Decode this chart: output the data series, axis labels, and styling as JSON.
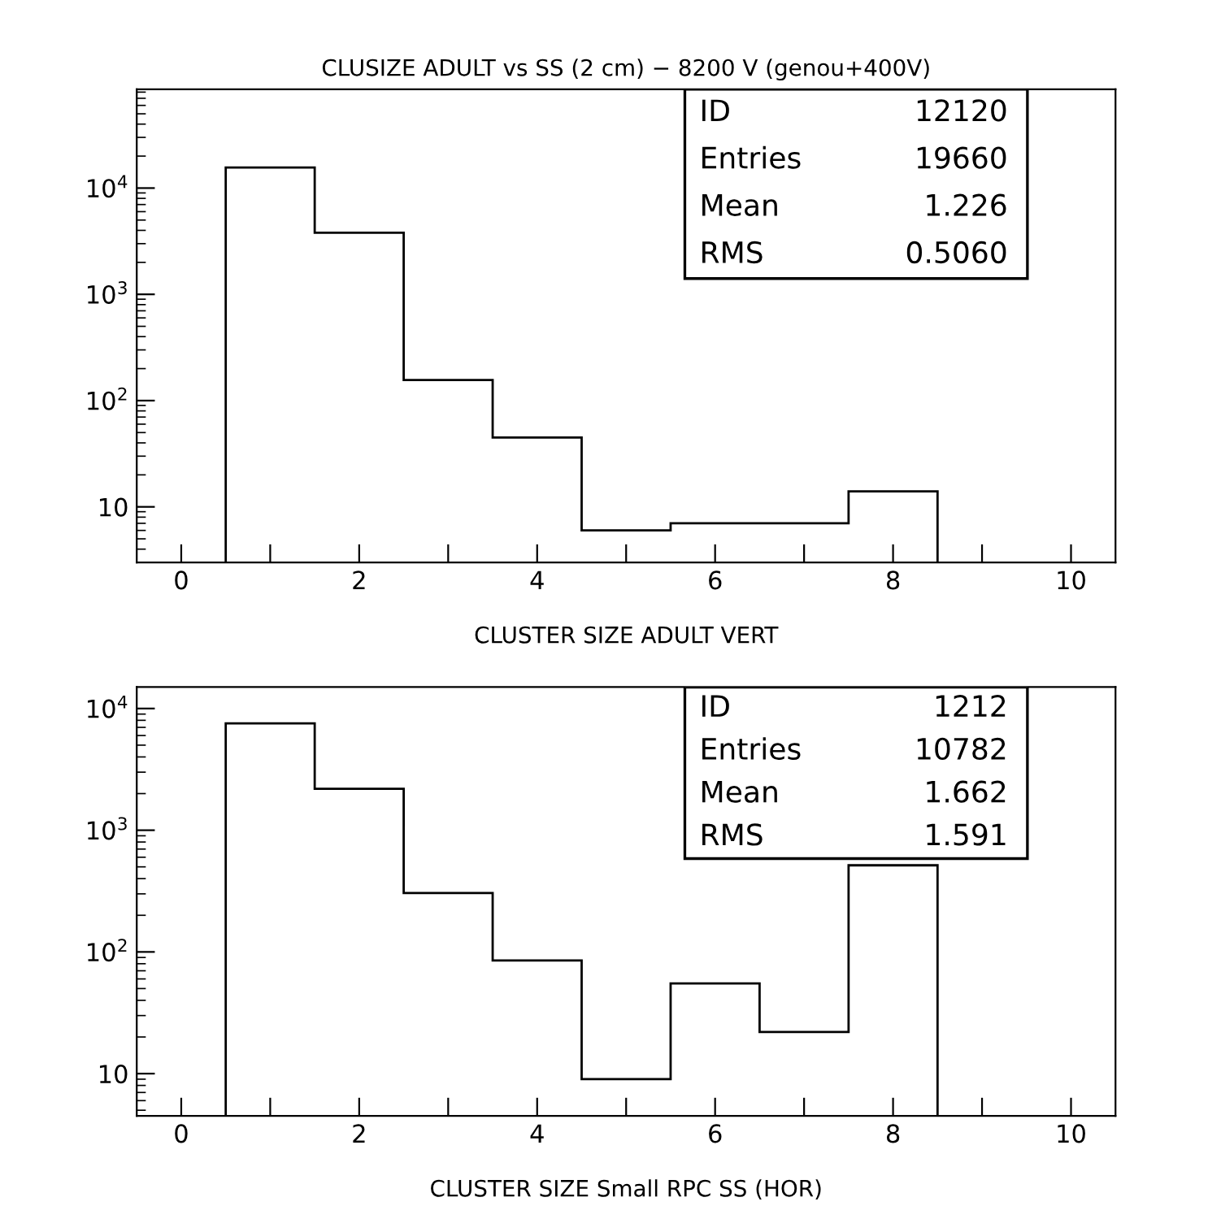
{
  "chart_data": [
    {
      "type": "histogram",
      "title": "CLUSIZE ADULT vs SS (2 cm) − 8200 V (genou+400V)",
      "xlabel": "CLUSTER SIZE ADULT VERT",
      "bins": [
        0.5,
        1.5,
        2.5,
        3.5,
        4.5,
        5.5,
        6.5,
        7.5,
        8.5
      ],
      "values": [
        15600,
        3800,
        156,
        45,
        6,
        7,
        7,
        14
      ],
      "color": "#000000",
      "log": true,
      "xlim": [
        -0.5,
        10.5
      ],
      "xticks": [
        0,
        {
          "value": 1,
          "label": null
        },
        2,
        {
          "value": 3,
          "label": null
        },
        4,
        {
          "value": 5,
          "label": null
        },
        6,
        {
          "value": 7,
          "label": null
        },
        8,
        {
          "value": 9,
          "label": null
        },
        10
      ],
      "ylim": [
        3,
        85000
      ],
      "yticks": [
        {
          "value": 10,
          "label": "10"
        },
        {
          "value": 100,
          "label": "10$^{2}$"
        },
        {
          "value": 1000,
          "label": "10$^{3}$"
        },
        {
          "value": 10000,
          "label": "10$^{4}$"
        }
      ],
      "annotations": [
        "ID",
        "12120",
        "Entries",
        "19660",
        "Mean",
        "1.226",
        "RMS",
        "0.5060"
      ],
      "grid": false
    },
    {
      "type": "histogram",
      "xlabel": "CLUSTER SIZE Small RPC SS (HOR)",
      "bins": [
        0.5,
        1.5,
        2.5,
        3.5,
        4.5,
        5.5,
        6.5,
        7.5,
        8.5
      ],
      "values": [
        7560,
        2190,
        305,
        85,
        9,
        55,
        22,
        515
      ],
      "color": "#000000",
      "log": true,
      "xlim": [
        -0.5,
        10.5
      ],
      "xticks": [
        0,
        {
          "value": 1,
          "label": null
        },
        2,
        {
          "value": 3,
          "label": null
        },
        4,
        {
          "value": 5,
          "label": null
        },
        6,
        {
          "value": 7,
          "label": null
        },
        8,
        {
          "value": 9,
          "label": null
        },
        10
      ],
      "ylim": [
        4.5,
        15000
      ],
      "yticks": [
        {
          "value": 10,
          "label": "10"
        },
        {
          "value": 100,
          "label": "10$^{2}$"
        },
        {
          "value": 1000,
          "label": "10$^{3}$"
        },
        {
          "value": 10000,
          "label": "10$^{4}$"
        }
      ],
      "annotations": [
        "ID",
        "1212",
        "Entries",
        "10782",
        "Mean",
        "1.662",
        "RMS",
        "1.591"
      ],
      "grid": false
    }
  ]
}
